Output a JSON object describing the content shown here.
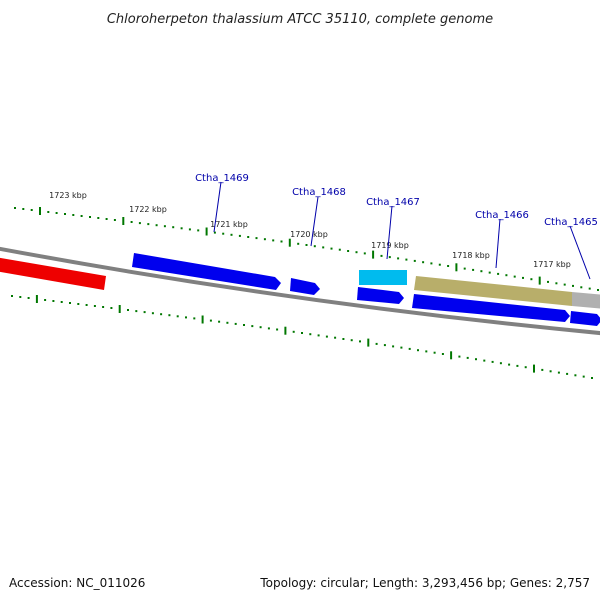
{
  "title": "Chloroherpeton thalassium ATCC 35110, complete genome",
  "accession_label": "Accession: NC_011026",
  "summary_label": "Topology: circular; Length: 3,293,456 bp; Genes: 2,757",
  "kbp_ticks": [
    "1723 kbp",
    "1722 kbp",
    "1721 kbp",
    "1720 kbp",
    "1719 kbp",
    "1718 kbp",
    "1717 kbp"
  ],
  "genes": [
    {
      "label": "Ctha_1469",
      "strand": "forward"
    },
    {
      "label": "Ctha_1468",
      "strand": "forward"
    },
    {
      "label": "Ctha_1467",
      "strand": "reverse"
    },
    {
      "label": "Ctha_1466",
      "strand": "reverse"
    },
    {
      "label": "Ctha_1465",
      "strand": "reverse"
    }
  ],
  "colors": {
    "backbone": "#808080",
    "cds": "#0000ee",
    "highlight_red": "#ee0000",
    "rna_cyan": "#00bbee",
    "feature_olive": "#b8ae6a",
    "feature_gray": "#b0b0b0",
    "tick_green": "#007700",
    "label_blue": "#0000aa"
  }
}
